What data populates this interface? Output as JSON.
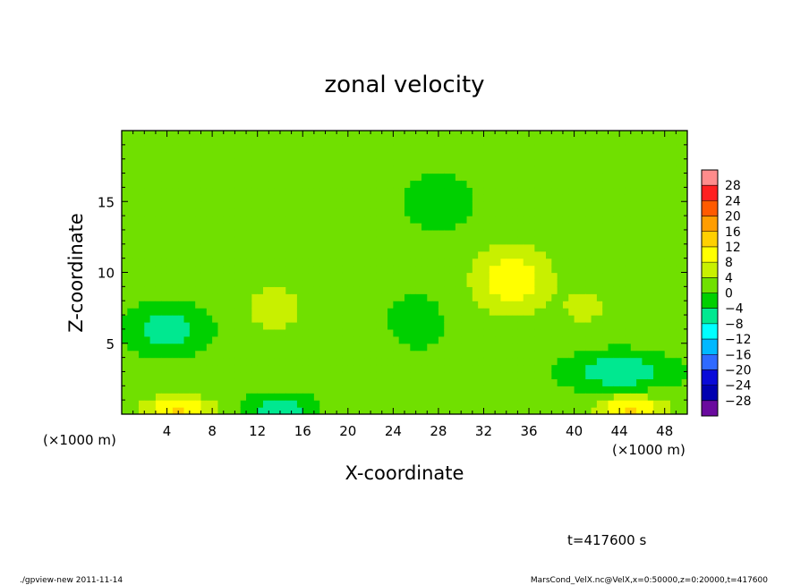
{
  "chart_data": {
    "type": "heatmap",
    "title": "zonal velocity",
    "xlabel": "X-coordinate",
    "ylabel": "Z-coordinate",
    "x_unit": "(×1000 m)",
    "y_unit": "(×1000 m)",
    "xlim": [
      0,
      50
    ],
    "ylim": [
      0,
      20
    ],
    "x_ticks": [
      "4",
      "8",
      "12",
      "16",
      "20",
      "24",
      "28",
      "32",
      "36",
      "40",
      "44",
      "48"
    ],
    "x_tick_values": [
      4,
      8,
      12,
      16,
      20,
      24,
      28,
      32,
      36,
      40,
      44,
      48
    ],
    "y_ticks": [
      "5",
      "10",
      "15"
    ],
    "y_tick_values": [
      5,
      10,
      15
    ],
    "colorbar": {
      "levels": [
        "28",
        "24",
        "20",
        "16",
        "12",
        "8",
        "4",
        "0",
        "−4",
        "−8",
        "−12",
        "−16",
        "−20",
        "−24",
        "−28"
      ],
      "colors": [
        "#ff8c8c",
        "#ff2020",
        "#ff5a00",
        "#ff9d00",
        "#ffd000",
        "#ffff00",
        "#c8f000",
        "#70e000",
        "#00d000",
        "#00e890",
        "#00ffff",
        "#00b8ff",
        "#2f6aff",
        "#0a0ad8",
        "#0000b0",
        "#6a0a9e"
      ],
      "value_range": [
        -32,
        32
      ],
      "note": "lowest band beyond -28, top band beyond 28"
    },
    "features": [
      {
        "x": 34.5,
        "z": 9.5,
        "value": 10,
        "sx": 3.5,
        "sz": 2.5
      },
      {
        "x": 13.5,
        "z": 7.5,
        "value": 6,
        "sx": 2.5,
        "sz": 1.8
      },
      {
        "x": 41,
        "z": 7.5,
        "value": 5,
        "sx": 2.0,
        "sz": 1.2
      },
      {
        "x": 5,
        "z": 0.4,
        "value": 12,
        "sx": 3.0,
        "sz": 0.9
      },
      {
        "x": 45,
        "z": 0.4,
        "value": 12,
        "sx": 3.0,
        "sz": 0.9
      },
      {
        "x": 4,
        "z": 6.0,
        "value": -9,
        "sx": 3.0,
        "sz": 1.5
      },
      {
        "x": 14,
        "z": 0.4,
        "value": -9,
        "sx": 2.5,
        "sz": 0.9
      },
      {
        "x": 44,
        "z": 3.0,
        "value": -9,
        "sx": 4.0,
        "sz": 1.2
      },
      {
        "x": 26,
        "z": 6.5,
        "value": -5,
        "sx": 2.0,
        "sz": 1.5
      },
      {
        "x": 28,
        "z": 15.0,
        "value": -3,
        "sx": 3.0,
        "sz": 2.0
      },
      {
        "x": 20,
        "z": 4.0,
        "value": 3,
        "sx": 3.5,
        "sz": 1.5
      }
    ],
    "time_label": "t=417600 s",
    "grid": false,
    "legend": "right"
  },
  "footer": {
    "left": "./gpview-new  2011-11-14",
    "right": "MarsCond_VelX.nc@VelX,x=0:50000,z=0:20000,t=417600"
  }
}
